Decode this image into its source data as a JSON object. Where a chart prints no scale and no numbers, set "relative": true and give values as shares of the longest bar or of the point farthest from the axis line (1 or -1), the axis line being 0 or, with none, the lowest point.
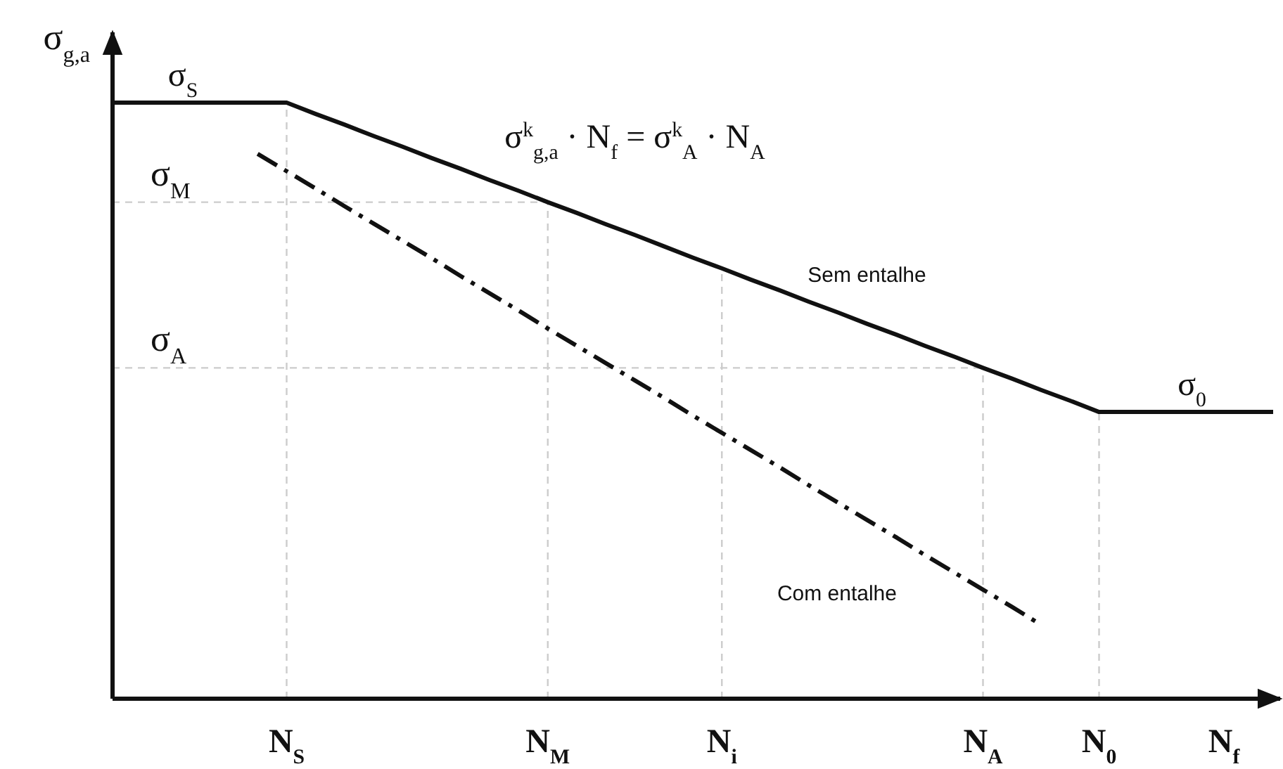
{
  "chart_data": {
    "type": "line",
    "relative": true,
    "ylabel": "σ$_{g,a}$",
    "xlabel": "N$_{f}$",
    "categories": [
      null,
      null,
      null,
      null,
      null,
      null,
      "N$_{S}$",
      null,
      null,
      null,
      null,
      null,
      null,
      null,
      null,
      "N$_{M}$",
      null,
      null,
      null,
      null,
      null,
      "N$_{i}$",
      null,
      null,
      null,
      null,
      null,
      null,
      null,
      null,
      "N$_{A}$",
      null,
      null,
      null,
      "N$_{0}$",
      null,
      null,
      null,
      null,
      null,
      null
    ],
    "series": [
      {
        "name": "Sem entalhe",
        "color": "#111111",
        "line_style": "solid",
        "values": [
          1,
          1,
          1,
          1,
          1,
          1,
          1,
          0.981,
          0.963,
          0.944,
          0.926,
          0.907,
          0.889,
          0.87,
          0.852,
          0.833,
          0.815,
          0.796,
          0.778,
          0.759,
          0.74,
          0.722,
          0.703,
          0.685,
          0.666,
          0.648,
          0.629,
          0.611,
          0.592,
          0.574,
          0.555,
          0.537,
          0.518,
          0.5,
          0.481,
          0.481,
          0.481,
          0.481,
          0.481,
          0.481,
          0.481
        ]
      },
      {
        "name": "Com entalhe",
        "color": "#111111",
        "line_style": "dashed",
        "values": [
          null,
          null,
          null,
          null,
          null,
          0.914,
          0.885,
          0.856,
          0.826,
          0.797,
          0.768,
          0.739,
          0.709,
          0.68,
          0.651,
          0.621,
          0.592,
          0.563,
          0.534,
          0.505,
          0.475,
          0.446,
          0.417,
          0.388,
          0.358,
          0.329,
          0.3,
          0.271,
          0.241,
          0.212,
          0.183,
          0.154,
          0.124,
          null,
          null,
          null,
          null,
          null,
          null,
          null,
          null
        ]
      }
    ],
    "ref_lines": [
      {
        "axis": "y",
        "value": 0.833,
        "label": "σ$_{M}$",
        "color": "#cccccc",
        "line_style": "dashed"
      },
      {
        "axis": "y",
        "value": 0.555,
        "label": "σ$_{A}$",
        "color": "#cccccc",
        "line_style": "dashed"
      },
      {
        "axis": "x",
        "value": "N$_{S}$",
        "color": "#cccccc",
        "line_style": "dashed"
      },
      {
        "axis": "x",
        "value": "N$_{M}$",
        "color": "#cccccc",
        "line_style": "dashed"
      },
      {
        "axis": "x",
        "value": "N$_{i}$",
        "color": "#cccccc",
        "line_style": "dashed"
      },
      {
        "axis": "x",
        "value": "N$_{A}$",
        "color": "#cccccc",
        "line_style": "dashed"
      },
      {
        "axis": "x",
        "value": "N$_{0}$",
        "color": "#cccccc",
        "line_style": "dashed"
      }
    ],
    "annotations": [
      "σ$_{S}$",
      "σ$_{0}$",
      "σ$^{k}$$_{g,a}$ · N$_{f}$ = σ$^{k}$$_{A}$ · N$_{A}$"
    ]
  }
}
